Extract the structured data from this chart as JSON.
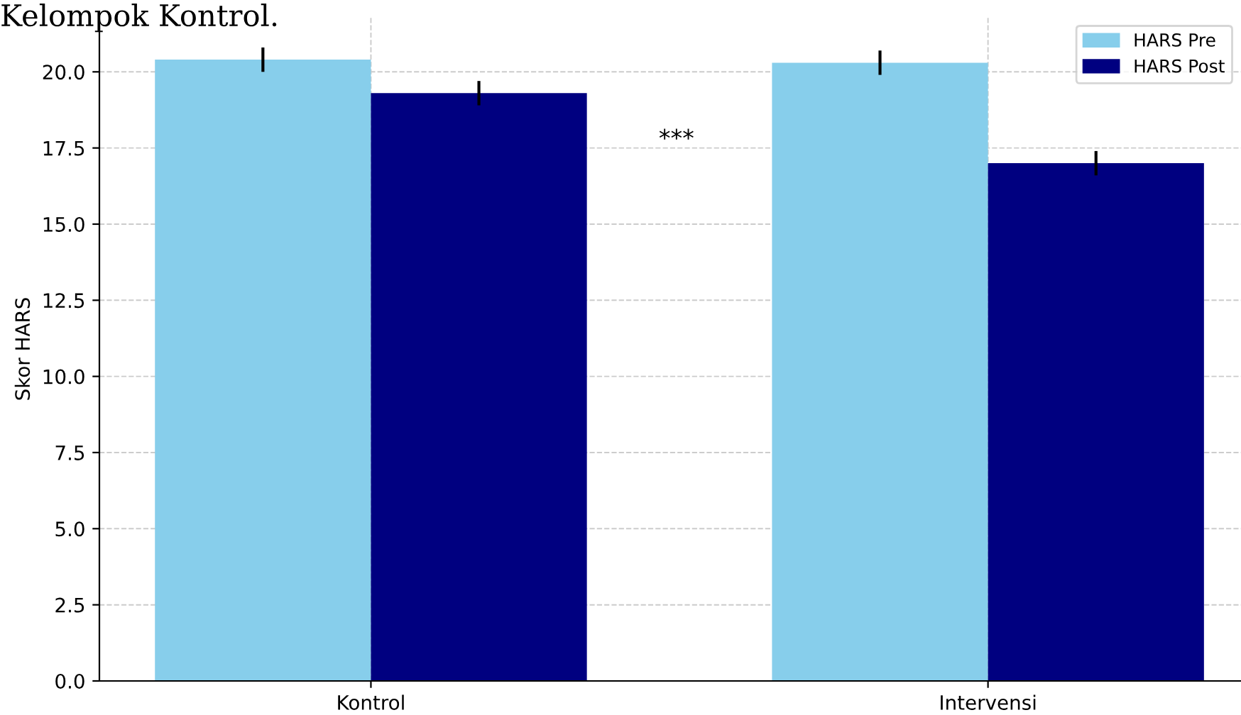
{
  "chart_data": {
    "type": "bar",
    "title": "Kelompok Kontrol.",
    "ylabel": "Skor HARS",
    "categories": [
      "Kontrol",
      "Intervensi"
    ],
    "series": [
      {
        "name": "HARS Pre",
        "color": "#87ceeb",
        "values": [
          20.4,
          20.3
        ],
        "errors": [
          0.4,
          0.4
        ]
      },
      {
        "name": "HARS Post",
        "color": "#000080",
        "values": [
          19.3,
          17.0
        ],
        "errors": [
          0.4,
          0.4
        ]
      }
    ],
    "annotations": [
      "***"
    ],
    "ylim": [
      0,
      21.8
    ],
    "yticks": [
      {
        "value": 0,
        "label": "0.0"
      },
      {
        "value": 2.5,
        "label": "2.5"
      },
      {
        "value": 5,
        "label": "5.0"
      },
      {
        "value": 7.5,
        "label": "7.5"
      },
      {
        "value": 10,
        "label": "10.0"
      },
      {
        "value": 12.5,
        "label": "12.5"
      },
      {
        "value": 15,
        "label": "15.0"
      },
      {
        "value": 17.5,
        "label": "17.5"
      },
      {
        "value": 20,
        "label": "20.0"
      }
    ],
    "grid": true,
    "legend": "top right"
  }
}
